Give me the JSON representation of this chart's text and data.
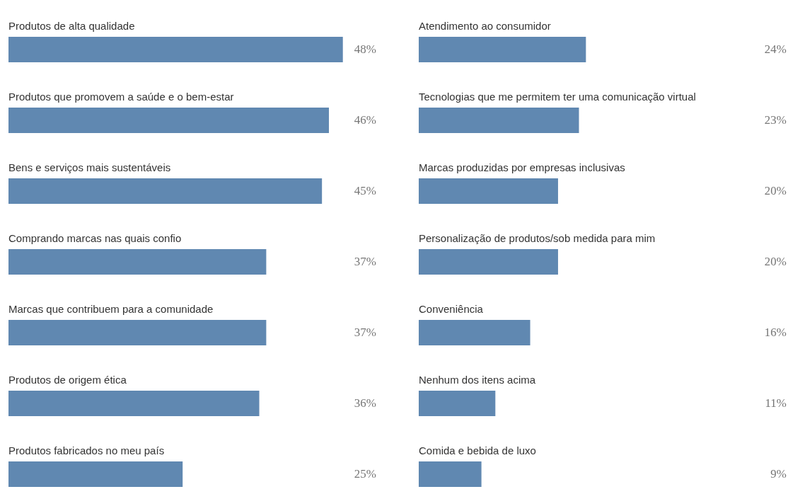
{
  "chart_data": [
    {
      "type": "bar",
      "orientation": "horizontal",
      "color": "#6088b1",
      "categories": [
        "Produtos de alta qualidade",
        "Produtos que promovem a saúde e o bem-estar",
        "Bens e serviços mais sustentáveis",
        "Comprando marcas nas quais confio",
        "Marcas que contribuem para a comunidade",
        "Produtos de origem ética",
        "Produtos fabricados no meu país"
      ],
      "values": [
        48,
        46,
        45,
        37,
        37,
        36,
        25
      ],
      "value_labels": [
        "48%",
        "46%",
        "45%",
        "37%",
        "37%",
        "36%",
        "25%"
      ]
    },
    {
      "type": "bar",
      "orientation": "horizontal",
      "color": "#6088b1",
      "categories": [
        "Atendimento ao consumidor",
        "Tecnologias que me permitem ter uma comunicação virtual",
        "Marcas produzidas por empresas inclusivas",
        "Personalização de produtos/sob medida para mim",
        "Conveniência",
        "Nenhum dos itens acima",
        "Comida e bebida de luxo"
      ],
      "values": [
        24,
        23,
        20,
        20,
        16,
        11,
        9
      ],
      "value_labels": [
        "24%",
        "23%",
        "20%",
        "20%",
        "16%",
        "11%",
        "9%"
      ]
    }
  ]
}
